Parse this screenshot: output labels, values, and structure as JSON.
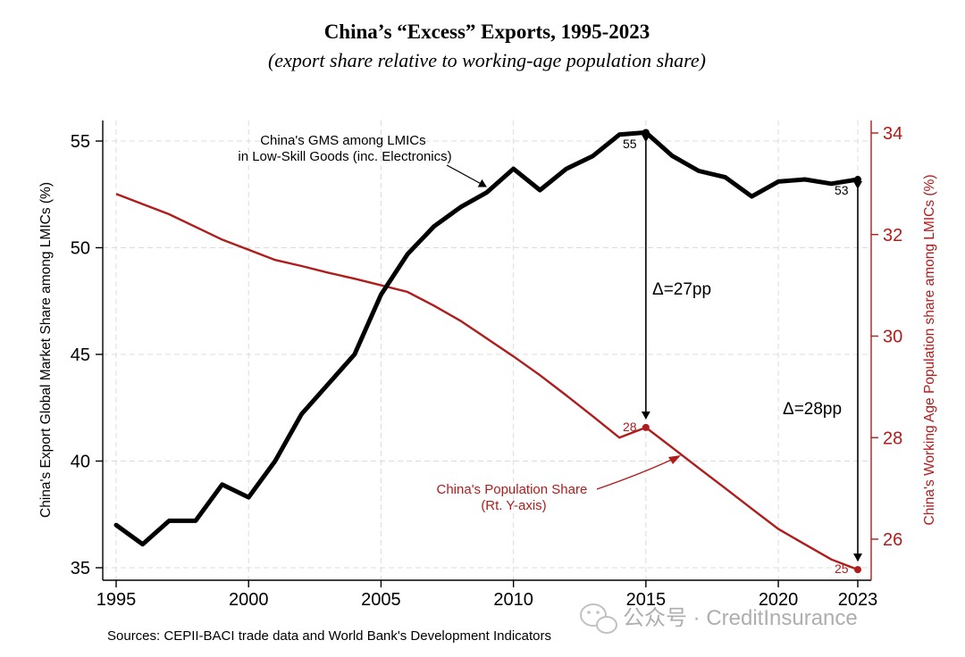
{
  "chart_data": {
    "type": "line",
    "title": "China’s “Excess” Exports, 1995-2023",
    "subtitle": "(export share relative to working-age population share)",
    "ylabel_left": "China's Export Global Market Share among LMICs (%)",
    "ylabel_right": "China's Working Age Population share among LMICs (%)",
    "source": "Sources: CEPII-BACI trade data and World Bank's Development Indicators",
    "watermark": "公众号 · CreditInsurance",
    "xlim": [
      1995,
      2023
    ],
    "x_ticks": [
      "1995",
      "2000",
      "2005",
      "2010",
      "2015",
      "2020",
      "2023"
    ],
    "ylim_left": [
      35,
      55
    ],
    "y_ticks_left": [
      "35",
      "40",
      "45",
      "50",
      "55"
    ],
    "ylim_right": [
      25.4,
      34.2
    ],
    "y_ticks_right": [
      "26",
      "28",
      "30",
      "32",
      "34"
    ],
    "grid": true,
    "colors": {
      "gms": "#000000",
      "pop": "#b01c1c",
      "axis": "#000000",
      "grid": "#dcdcdc"
    },
    "x": [
      1995,
      1996,
      1997,
      1998,
      1999,
      2000,
      2001,
      2002,
      2003,
      2004,
      2005,
      2006,
      2007,
      2008,
      2009,
      2010,
      2011,
      2012,
      2013,
      2014,
      2015,
      2016,
      2017,
      2018,
      2019,
      2020,
      2021,
      2022,
      2023
    ],
    "series": [
      {
        "name": "China's GMS among LMICs\nin Low-Skill Goods (inc. Electronics)",
        "axis": "left",
        "values": [
          37.0,
          36.1,
          37.2,
          37.2,
          38.9,
          38.3,
          40.0,
          42.2,
          43.6,
          45.0,
          47.8,
          49.7,
          51.0,
          51.9,
          52.6,
          53.7,
          52.7,
          53.7,
          54.3,
          55.3,
          55.4,
          54.3,
          53.6,
          53.3,
          52.4,
          53.1,
          53.2,
          53.0,
          53.2
        ],
        "end_labels": [
          "55",
          "53"
        ]
      },
      {
        "name": "China's Population Share\n(Rt. Y-axis)",
        "axis": "right",
        "values": [
          32.8,
          32.6,
          32.4,
          32.15,
          31.9,
          31.7,
          31.5,
          31.38,
          31.25,
          31.13,
          31.0,
          30.87,
          30.6,
          30.3,
          29.95,
          29.6,
          29.23,
          28.83,
          28.42,
          28.0,
          28.2,
          27.8,
          27.4,
          27.0,
          26.6,
          26.2,
          25.9,
          25.6,
          25.4
        ],
        "end_labels": [
          "28",
          "25"
        ]
      }
    ],
    "annotations": [
      {
        "text": "Δ=27pp",
        "year": 2015
      },
      {
        "text": "Δ=28pp",
        "year": 2023
      }
    ]
  }
}
